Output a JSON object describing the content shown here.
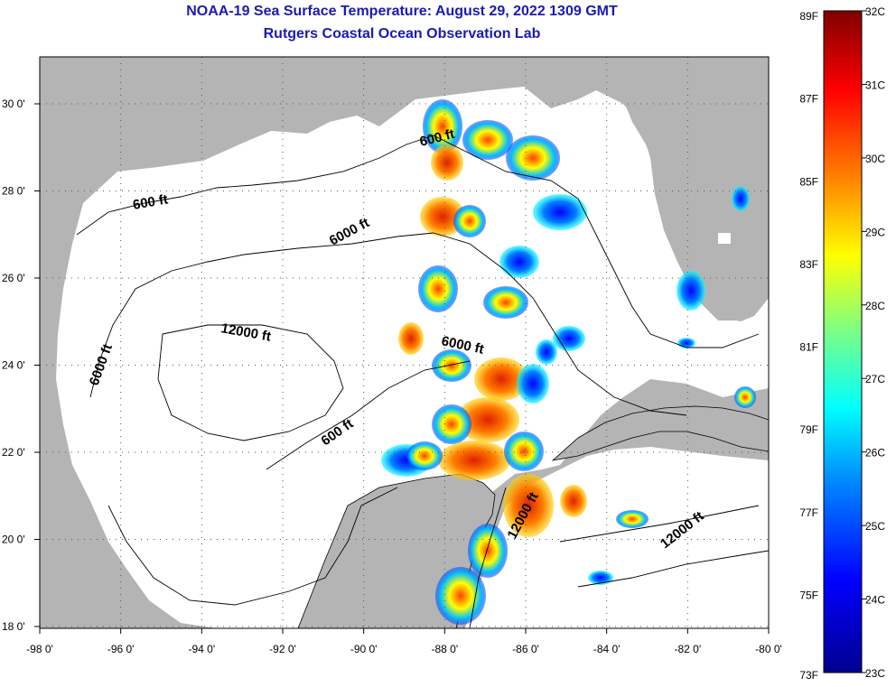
{
  "title": "NOAA-19 Sea Surface Temperature:  August 29, 2022 1309 GMT",
  "subtitle": "Rutgers Coastal Ocean Observation Lab",
  "map": {
    "lon_labels": [
      "-98 0'",
      "-96 0'",
      "-94 0'",
      "-92 0'",
      "-90 0'",
      "-88 0'",
      "-86 0'",
      "-84 0'",
      "-82 0'",
      "-80 0'"
    ],
    "lat_labels": [
      "18 0'",
      "20 0'",
      "22 0'",
      "24 0'",
      "26 0'",
      "28 0'",
      "30 0'"
    ],
    "contour_labels": [
      "600 ft",
      "600 ft",
      "600 ft",
      "6000 ft",
      "6000 ft",
      "6000 ft",
      "12000 ft",
      "12000 ft",
      "12000 ft"
    ],
    "colors": {
      "land": "#b4b4b4",
      "ocean": "#ffffff",
      "grid": "#555555"
    }
  },
  "colorbar": {
    "fahrenheit_labels": [
      "89F",
      "87F",
      "85F",
      "83F",
      "81F",
      "79F",
      "77F",
      "75F",
      "73F"
    ],
    "celsius_labels": [
      "32C",
      "31C",
      "30C",
      "29C",
      "28C",
      "27C",
      "26C",
      "25C",
      "24C",
      "23C"
    ],
    "colors": [
      "#7f0000",
      "#ff0000",
      "#ff8000",
      "#ffff00",
      "#80ff80",
      "#00ffff",
      "#0080ff",
      "#0000ff",
      "#00008f"
    ]
  }
}
